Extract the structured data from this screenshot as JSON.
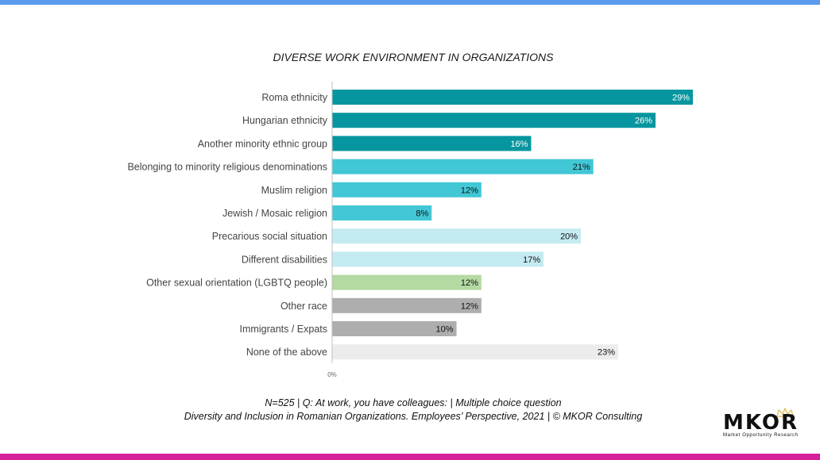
{
  "chart_data": {
    "type": "bar",
    "orientation": "horizontal",
    "title": "DIVERSE WORK ENVIRONMENT IN ORGANIZATIONS",
    "categories": [
      "Roma ethnicity",
      "Hungarian ethnicity",
      "Another minority ethnic group",
      "Belonging to minority religious denominations",
      "Muslim religion",
      "Jewish / Mosaic religion",
      "Precarious social situation",
      "Different disabilities",
      "Other sexual orientation (LGBTQ people)",
      "Other race",
      "Immigrants / Expats",
      "None of the above"
    ],
    "values": [
      29,
      26,
      16,
      21,
      12,
      8,
      20,
      17,
      12,
      12,
      10,
      23
    ],
    "value_labels": [
      "29%",
      "26%",
      "16%",
      "21%",
      "12%",
      "8%",
      "20%",
      "17%",
      "12%",
      "12%",
      "10%",
      "23%"
    ],
    "colors": [
      "#07969f",
      "#07969f",
      "#07969f",
      "#42c7d6",
      "#42c7d6",
      "#42c7d6",
      "#c5ebf2",
      "#c5ebf2",
      "#b4d9a1",
      "#aeaeae",
      "#aeaeae",
      "#ececec"
    ],
    "label_colors": [
      "#ffffff",
      "#ffffff",
      "#ffffff",
      "#111111",
      "#111111",
      "#111111",
      "#111111",
      "#111111",
      "#111111",
      "#111111",
      "#111111",
      "#111111"
    ],
    "x_tick_label": "0%",
    "xlim": [
      0,
      29
    ],
    "grid": false,
    "legend": "none"
  },
  "footnote": {
    "line1": "N=525 | Q: At work, you have colleagues: | Multiple choice question",
    "line2": "Diversity and Inclusion in Romanian Organizations. Employees’ Perspective, 2021 | © MKOR Consulting"
  },
  "logo": {
    "name": "MKOR",
    "tagline": "Market Opportunity Research"
  },
  "colors": {
    "top_bar": "#5b9bef",
    "bottom_bar": "#d61f9a"
  }
}
